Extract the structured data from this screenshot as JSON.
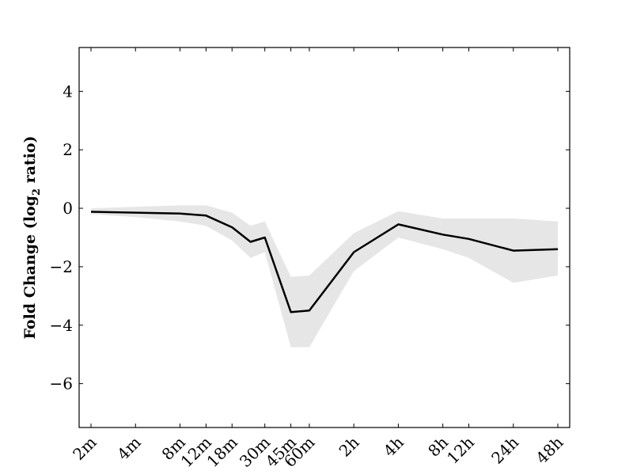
{
  "chart_data": {
    "type": "line",
    "title": "",
    "xlabel": "",
    "ylabel": "Fold Change (log",
    "ylabel_subscript": "2",
    "ylabel_suffix": " ratio)",
    "ylim": [
      -7.5,
      5.5
    ],
    "yticks": [
      4,
      2,
      0,
      -2,
      -4,
      -6
    ],
    "grid": false,
    "legend": "none",
    "x_labels": [
      "2m",
      "4m",
      "8m",
      "12m",
      "18m",
      "30m",
      "45m",
      "60m",
      "2h",
      "4h",
      "8h",
      "12h",
      "24h",
      "48h"
    ],
    "x_tick_minutes": [
      2,
      4,
      8,
      12,
      18,
      30,
      45,
      60,
      120,
      240,
      480,
      720,
      1440,
      2880
    ],
    "series": [
      {
        "x_minutes": [
          2,
          4,
          8,
          12,
          18,
          24,
          30,
          45,
          60,
          120,
          240,
          480,
          720,
          1440,
          2880
        ],
        "values": [
          -0.12,
          -0.15,
          -0.18,
          -0.25,
          -0.65,
          -1.15,
          -1.0,
          -3.55,
          -3.5,
          -1.5,
          -0.55,
          -0.9,
          -1.05,
          -1.45,
          -1.4
        ],
        "lower": [
          -0.2,
          -0.3,
          -0.45,
          -0.6,
          -1.1,
          -1.7,
          -1.5,
          -4.75,
          -4.75,
          -2.15,
          -1.0,
          -1.4,
          -1.7,
          -2.55,
          -2.3
        ],
        "upper": [
          0.0,
          0.05,
          0.1,
          0.1,
          -0.15,
          -0.6,
          -0.45,
          -2.35,
          -2.3,
          -0.85,
          -0.1,
          -0.35,
          -0.35,
          -0.35,
          -0.45
        ]
      }
    ],
    "colors": {
      "line": "#000000",
      "band": "#e6e6e6"
    }
  }
}
